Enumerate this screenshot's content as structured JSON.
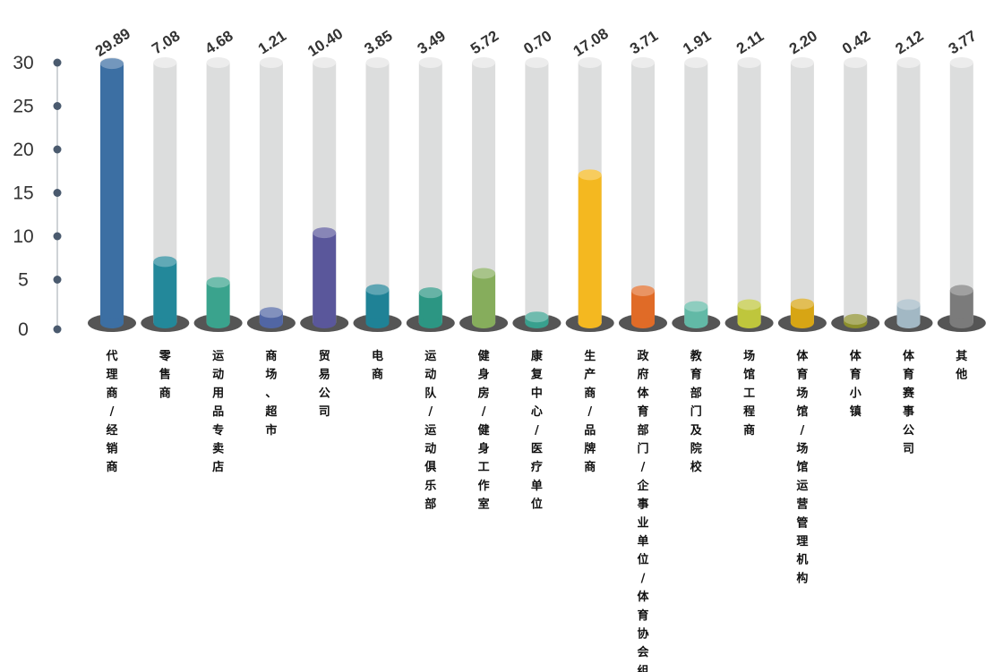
{
  "chart_data": {
    "type": "bar",
    "categories": [
      "代理商/经销商",
      "零售商",
      "运动用品专卖店",
      "商场、超市",
      "贸易公司",
      "电商",
      "运动队/运动俱乐部",
      "健身房/健身工作室",
      "康复中心/医疗单位",
      "生产商/品牌商",
      "政府体育部门/企事业单位/体育协会组织",
      "教育部门及院校",
      "场馆工程商",
      "体育场馆/场馆运营管理机构",
      "体育小镇",
      "体育赛事公司",
      "其他"
    ],
    "values": [
      29.89,
      7.08,
      4.68,
      1.21,
      10.4,
      3.85,
      3.49,
      5.72,
      0.7,
      17.08,
      3.71,
      1.91,
      2.11,
      2.2,
      0.42,
      2.12,
      3.77
    ],
    "value_labels": [
      "29.89",
      "7.08",
      "4.68",
      "1.21",
      "10.40",
      "3.85",
      "3.49",
      "5.72",
      "0.70",
      "17.08",
      "3.71",
      "1.91",
      "2.11",
      "2.20",
      "0.42",
      "2.12",
      "3.77"
    ],
    "y_ticks": [
      0,
      5,
      10,
      15,
      20,
      25,
      30
    ],
    "ylim": [
      0,
      30
    ],
    "grid": false,
    "legend": "none",
    "colors": [
      "#3c6fa3",
      "#23889a",
      "#3aa38d",
      "#5166a4",
      "#5a579b",
      "#1f8296",
      "#2c9683",
      "#86ad5c",
      "#38a08e",
      "#f4b820",
      "#e06b27",
      "#62b9a6",
      "#bfc63c",
      "#d7a514",
      "#8c8f2c",
      "#a2b8c4",
      "#7b7b7b"
    ],
    "track_color": "#dcdddd",
    "base_color": "#555555",
    "axis_color": "#cfd3d6",
    "axis_dot_color": "#4a5a6e"
  }
}
